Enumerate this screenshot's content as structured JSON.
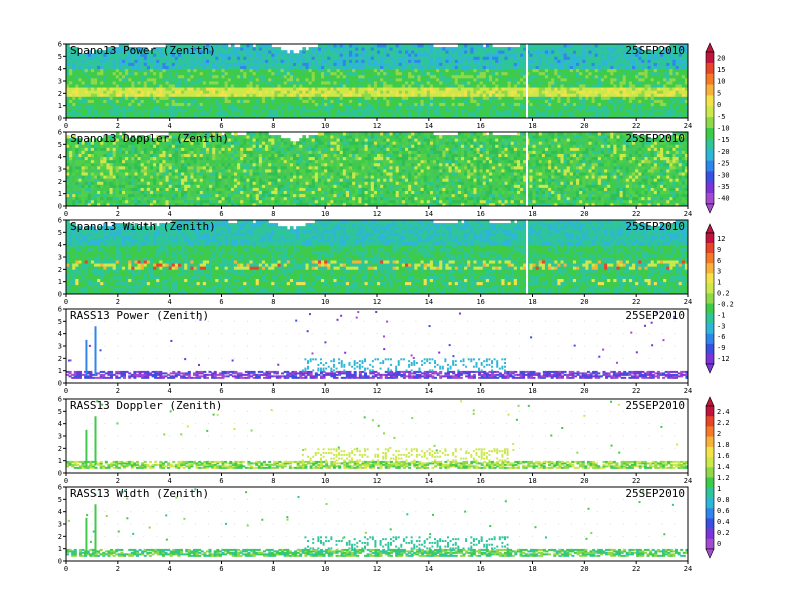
{
  "chart_data": [
    {
      "type": "heatmap",
      "title": "Spano13 Power (Zenith)",
      "date": "25SEP2010",
      "xlim": [
        0,
        24
      ],
      "ylim": [
        0,
        6
      ],
      "x_ticks": [
        "0",
        "2",
        "4",
        "6",
        "8",
        "10",
        "12",
        "14",
        "16",
        "18",
        "20",
        "22",
        "24"
      ],
      "y_ticks": [
        "0",
        "1",
        "2",
        "3",
        "4",
        "5",
        "6"
      ],
      "colorbar": "power"
    },
    {
      "type": "heatmap",
      "title": "Spano13 Doppler (Zenith)",
      "date": "25SEP2010",
      "xlim": [
        0,
        24
      ],
      "ylim": [
        0,
        6
      ],
      "x_ticks": [
        "0",
        "2",
        "4",
        "6",
        "8",
        "10",
        "12",
        "14",
        "16",
        "18",
        "20",
        "22",
        "24"
      ],
      "y_ticks": [
        "0",
        "1",
        "2",
        "3",
        "4",
        "5",
        "6"
      ],
      "colorbar": "power"
    },
    {
      "type": "heatmap",
      "title": "Spano13 Width (Zenith)",
      "date": "25SEP2010",
      "xlim": [
        0,
        24
      ],
      "ylim": [
        0,
        6
      ],
      "x_ticks": [
        "0",
        "2",
        "4",
        "6",
        "8",
        "10",
        "12",
        "14",
        "16",
        "18",
        "20",
        "22",
        "24"
      ],
      "y_ticks": [
        "0",
        "1",
        "2",
        "3",
        "4",
        "5",
        "6"
      ],
      "colorbar": "doppler"
    },
    {
      "type": "heatmap",
      "title": "RASS13 Power (Zenith)",
      "date": "25SEP2010",
      "xlim": [
        0,
        24
      ],
      "ylim": [
        0,
        6
      ],
      "x_ticks": [
        "0",
        "2",
        "4",
        "6",
        "8",
        "10",
        "12",
        "14",
        "16",
        "18",
        "20",
        "22",
        "24"
      ],
      "y_ticks": [
        "0",
        "1",
        "2",
        "3",
        "4",
        "5",
        "6"
      ],
      "colorbar": "doppler"
    },
    {
      "type": "heatmap",
      "title": "RASS13 Doppler (Zenith)",
      "date": "25SEP2010",
      "xlim": [
        0,
        24
      ],
      "ylim": [
        0,
        6
      ],
      "x_ticks": [
        "0",
        "2",
        "4",
        "6",
        "8",
        "10",
        "12",
        "14",
        "16",
        "18",
        "20",
        "22",
        "24"
      ],
      "y_ticks": [
        "0",
        "1",
        "2",
        "3",
        "4",
        "5",
        "6"
      ],
      "colorbar": "width"
    },
    {
      "type": "heatmap",
      "title": "RASS13 Width (Zenith)",
      "date": "25SEP2010",
      "xlim": [
        0,
        24
      ],
      "ylim": [
        0,
        6
      ],
      "x_ticks": [
        "0",
        "2",
        "4",
        "6",
        "8",
        "10",
        "12",
        "14",
        "16",
        "18",
        "20",
        "22",
        "24"
      ],
      "y_ticks": [
        "0",
        "1",
        "2",
        "3",
        "4",
        "5",
        "6"
      ],
      "colorbar": "width"
    }
  ],
  "colorbars": {
    "power": {
      "labels": [
        "20",
        "15",
        "10",
        "5",
        "0",
        "-5",
        "-10",
        "-15",
        "-20",
        "-25",
        "-30",
        "-35",
        "-40"
      ],
      "colors": [
        "#c0143c",
        "#e8442a",
        "#f47a2a",
        "#f8b13a",
        "#f4e24a",
        "#cce84a",
        "#8ed84a",
        "#3fcb4a",
        "#2ec59a",
        "#2fb6d6",
        "#2f86ea",
        "#3b4fe0",
        "#7a34d8",
        "#a44ad0"
      ]
    },
    "doppler": {
      "labels": [
        "12",
        "9",
        "6",
        "3",
        "1",
        "0.2",
        "-0.2",
        "-1",
        "-3",
        "-6",
        "-9",
        "-12"
      ],
      "colors": [
        "#c0143c",
        "#e8442a",
        "#f47a2a",
        "#f8b13a",
        "#f4e24a",
        "#cce84a",
        "#8ed84a",
        "#3fcb4a",
        "#2ec59a",
        "#2fb6d6",
        "#2f86ea",
        "#3b4fe0",
        "#7a34d8"
      ]
    },
    "width": {
      "labels": [
        "2.4",
        "2.2",
        "2",
        "1.8",
        "1.6",
        "1.4",
        "1.2",
        "1",
        "0.8",
        "0.6",
        "0.4",
        "0.2",
        "0"
      ],
      "colors": [
        "#c0143c",
        "#e8442a",
        "#f47a2a",
        "#f8b13a",
        "#f4e24a",
        "#cce84a",
        "#8ed84a",
        "#3fcb4a",
        "#2ec59a",
        "#2fb6d6",
        "#2f86ea",
        "#3b4fe0",
        "#7a34d8",
        "#a44ad0"
      ]
    }
  }
}
